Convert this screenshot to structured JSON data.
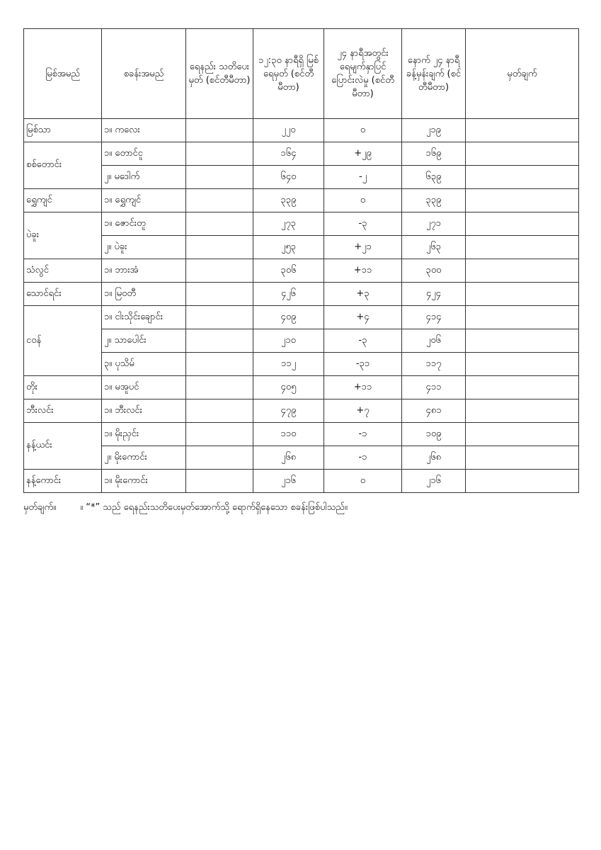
{
  "table": {
    "headers": [
      "မြစ်အမည်",
      "စခန်းအမည်",
      "ရေနည်း သတိပေးမှတ် (စင်တီမီတာ)",
      "၁၂:၃၀ နာရီရှိ မြစ်ရေမှတ် (စင်တီမီတာ)",
      "၂၄ နာရီအတွင်း ရေမျက်နှာပြင် ပြောင်းလဲမှု (စင်တီမီတာ)",
      "နောက် ၂၄ နာရီ ခန့်မှန်းချက် (စင်တီမီတာ)",
      "မှတ်ချက်"
    ],
    "groups": [
      {
        "river": "မြစ်သာ",
        "rows": [
          {
            "station": "၁။ ကလေး",
            "warning": "",
            "level": "၂၂၀",
            "change": "၀",
            "forecast": "၂၁၉",
            "remark": ""
          }
        ]
      },
      {
        "river": "စစ်တောင်း",
        "rows": [
          {
            "station": "၁။ တောင်ငူ",
            "warning": "",
            "level": "၁၆၄",
            "change": "+၂၉",
            "forecast": "၁၆၉",
            "remark": ""
          },
          {
            "station": "၂။ မဒေါက်",
            "warning": "",
            "level": "၆၄၀",
            "change": "-၂",
            "forecast": "၆၃၉",
            "remark": ""
          }
        ]
      },
      {
        "river": "ရွှေကျင်",
        "rows": [
          {
            "station": "၁။ ရွှေကျင်",
            "warning": "",
            "level": "၃၃၉",
            "change": "၀",
            "forecast": "၃၃၉",
            "remark": ""
          }
        ]
      },
      {
        "river": "ပဲခူး",
        "rows": [
          {
            "station": "၁။ ဇောင်းတူ",
            "warning": "",
            "level": "၂၇၃",
            "change": "-၃",
            "forecast": "၂၇၁",
            "remark": ""
          },
          {
            "station": "၂။ ပဲခူး",
            "warning": "",
            "level": "၂၅၃",
            "change": "+၂၁",
            "forecast": "၂၆၃",
            "remark": ""
          }
        ]
      },
      {
        "river": "သံလွင်",
        "rows": [
          {
            "station": "၁။ ဘားအံ",
            "warning": "",
            "level": "၃၀၆",
            "change": "+၁၁",
            "forecast": "၃၀၀",
            "remark": ""
          }
        ]
      },
      {
        "river": "သောင်ရင်း",
        "rows": [
          {
            "station": "၁။ မြဝတီ",
            "warning": "",
            "level": "၄၂၆",
            "change": "+၃",
            "forecast": "၄၂၄",
            "remark": ""
          }
        ]
      },
      {
        "river": "ငဝန်",
        "rows": [
          {
            "station": "၁။ ငါးသိုင်းချောင်း",
            "warning": "",
            "level": "၄၀၉",
            "change": "+၄",
            "forecast": "၄၁၄",
            "remark": ""
          },
          {
            "station": "၂။ သာပေါင်း",
            "warning": "",
            "level": "၂၁၀",
            "change": "-၃",
            "forecast": "၂၀၆",
            "remark": ""
          },
          {
            "station": "၃။ ပုသိမ်",
            "warning": "",
            "level": "၁၁၂",
            "change": "-၃၁",
            "forecast": "၁၁၇",
            "remark": ""
          }
        ]
      },
      {
        "river": "တိုး",
        "rows": [
          {
            "station": "၁။ မအူပင်",
            "warning": "",
            "level": "၄၀၅",
            "change": "+၁၁",
            "forecast": "၄၁၁",
            "remark": ""
          }
        ]
      },
      {
        "river": "ဘီးလင်း",
        "rows": [
          {
            "station": "၁။ ဘီးလင်း",
            "warning": "",
            "level": "၄၇၉",
            "change": "+၇",
            "forecast": "၄၈၁",
            "remark": ""
          }
        ]
      },
      {
        "river": "နန့်ယင်း",
        "rows": [
          {
            "station": "၁။ မိုးညှင်း",
            "warning": "",
            "level": "၁၁၀",
            "change": "-၁",
            "forecast": "၁၀၉",
            "remark": ""
          },
          {
            "station": "၂။ မိုးကောင်း",
            "warning": "",
            "level": "၂၆၈",
            "change": "-၁",
            "forecast": "၂၆၈",
            "remark": ""
          }
        ]
      },
      {
        "river": "နန့်ကောင်း",
        "rows": [
          {
            "station": "၁။ မိုးကောင်း",
            "warning": "",
            "level": "၂၁၆",
            "change": "၀",
            "forecast": "၂၁၆",
            "remark": ""
          }
        ]
      }
    ]
  },
  "note": {
    "label": "မှတ်ချက်။",
    "text": "။ “*” သည် ရေနည်းသတိပေးမှတ်အောက်သို့ ရောက်ရှိနေသော စခန်းဖြစ်ပါသည်။"
  }
}
